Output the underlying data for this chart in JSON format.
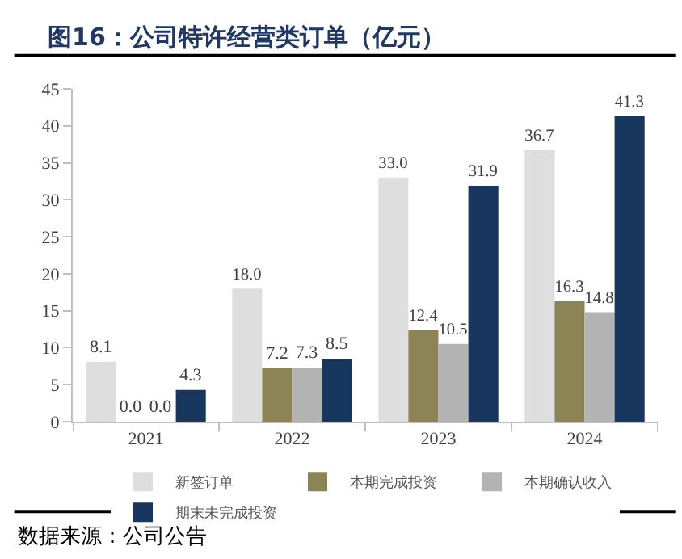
{
  "chart_data": {
    "type": "bar",
    "title": "图16：公司特许经营类订单（亿元）",
    "categories": [
      "2021",
      "2022",
      "2023",
      "2024"
    ],
    "series": [
      {
        "name": "新签订单",
        "color": "#dedede",
        "values": [
          8.1,
          18,
          33,
          36.7
        ],
        "value_labels": [
          "8.1",
          "18.0",
          "33.0",
          "36.7"
        ]
      },
      {
        "name": "本期完成投资",
        "color": "#8c8455",
        "values": [
          0,
          7.2,
          12.4,
          16.3
        ],
        "value_labels": [
          "0.0",
          "7.2",
          "12.4",
          "16.3"
        ]
      },
      {
        "name": "本期确认收入",
        "color": "#b3b3b3",
        "values": [
          0,
          7.3,
          10.5,
          14.8
        ],
        "value_labels": [
          "0.0",
          "7.3",
          "10.5",
          "14.8"
        ]
      },
      {
        "name": "期末未完成投资",
        "color": "#17375e",
        "values": [
          4.3,
          8.5,
          31.9,
          41.3
        ],
        "value_labels": [
          "4.3",
          "8.5",
          "31.9",
          "41.3"
        ]
      }
    ],
    "ylim": [
      0,
      45
    ],
    "yticks": [
      0,
      5,
      10,
      15,
      20,
      25,
      30,
      35,
      40,
      45
    ],
    "grid": false,
    "legend": "bottom",
    "annotations": [
      "数据来源：公司公告"
    ]
  }
}
